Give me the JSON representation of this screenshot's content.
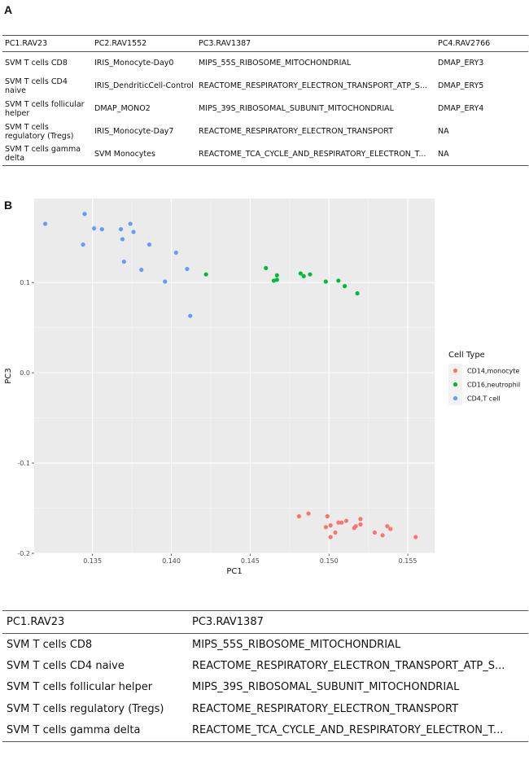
{
  "panel_a": {
    "label": "A",
    "columns": [
      "PC1.RAV23",
      "PC2.RAV1552",
      "PC3.RAV1387",
      "PC4.RAV2766"
    ],
    "rows": [
      [
        "SVM T cells CD8",
        "IRIS_Monocyte-Day0",
        "MIPS_55S_RIBOSOME_MITOCHONDRIAL",
        "DMAP_ERY3"
      ],
      [
        "SVM T cells CD4 naive",
        "IRIS_DendriticCell-Control",
        "REACTOME_RESPIRATORY_ELECTRON_TRANSPORT_ATP_S...",
        "DMAP_ERY5"
      ],
      [
        "SVM T cells follicular helper",
        "DMAP_MONO2",
        "MIPS_39S_RIBOSOMAL_SUBUNIT_MITOCHONDRIAL",
        "DMAP_ERY4"
      ],
      [
        "SVM T cells regulatory (Tregs)",
        "IRIS_Monocyte-Day7",
        "REACTOME_RESPIRATORY_ELECTRON_TRANSPORT",
        "NA"
      ],
      [
        "SVM T cells gamma delta",
        "SVM Monocytes",
        "REACTOME_TCA_CYCLE_AND_RESPIRATORY_ELECTRON_T...",
        "NA"
      ]
    ]
  },
  "panel_b": {
    "label": "B"
  },
  "panel_c": {
    "columns": [
      "PC1.RAV23",
      "PC3.RAV1387"
    ],
    "rows": [
      [
        "SVM T cells CD8",
        "MIPS_55S_RIBOSOME_MITOCHONDRIAL"
      ],
      [
        "SVM T cells CD4 naive",
        "REACTOME_RESPIRATORY_ELECTRON_TRANSPORT_ATP_S..."
      ],
      [
        "SVM T cells follicular helper",
        "MIPS_39S_RIBOSOMAL_SUBUNIT_MITOCHONDRIAL"
      ],
      [
        "SVM T cells regulatory (Tregs)",
        "REACTOME_RESPIRATORY_ELECTRON_TRANSPORT"
      ],
      [
        "SVM T cells gamma delta",
        "REACTOME_TCA_CYCLE_AND_RESPIRATORY_ELECTRON_T..."
      ]
    ]
  },
  "chart_data": {
    "type": "scatter",
    "xlabel": "PC1",
    "ylabel": "PC3",
    "xlim": [
      0.1313,
      0.1567
    ],
    "ylim": [
      -0.2,
      0.193
    ],
    "xticks": [
      0.135,
      0.14,
      0.145,
      0.15,
      0.155
    ],
    "xtick_labels": [
      "0.135",
      "0.140",
      "0.145",
      "0.150",
      "0.155"
    ],
    "yticks": [
      -0.2,
      -0.1,
      0.0,
      0.1
    ],
    "ytick_labels": [
      "-0.2",
      "-0.1",
      "0.0",
      "0.1"
    ],
    "grid": true,
    "background": "#ebebeb",
    "legend": {
      "title": "Cell Type",
      "position": "right"
    },
    "series": [
      {
        "name": "CD14,monocyte",
        "color": "#f8766d",
        "points": [
          [
            0.1481,
            -0.159
          ],
          [
            0.1487,
            -0.156
          ],
          [
            0.1499,
            -0.159
          ],
          [
            0.1498,
            -0.171
          ],
          [
            0.1501,
            -0.169
          ],
          [
            0.1504,
            -0.177
          ],
          [
            0.1501,
            -0.182
          ],
          [
            0.1506,
            -0.166
          ],
          [
            0.1508,
            -0.166
          ],
          [
            0.1511,
            -0.164
          ],
          [
            0.1516,
            -0.172
          ],
          [
            0.1517,
            -0.17
          ],
          [
            0.152,
            -0.162
          ],
          [
            0.152,
            -0.168
          ],
          [
            0.1529,
            -0.177
          ],
          [
            0.1534,
            -0.18
          ],
          [
            0.1537,
            -0.17
          ],
          [
            0.1539,
            -0.173
          ],
          [
            0.1555,
            -0.182
          ]
        ]
      },
      {
        "name": "CD16,neutrophil",
        "color": "#00ba38",
        "points": [
          [
            0.1422,
            0.109
          ],
          [
            0.146,
            0.116
          ],
          [
            0.1465,
            0.102
          ],
          [
            0.1467,
            0.108
          ],
          [
            0.1467,
            0.103
          ],
          [
            0.1482,
            0.11
          ],
          [
            0.1484,
            0.107
          ],
          [
            0.1488,
            0.109
          ],
          [
            0.1498,
            0.101
          ],
          [
            0.1506,
            0.102
          ],
          [
            0.151,
            0.096
          ],
          [
            0.1518,
            0.088
          ]
        ]
      },
      {
        "name": "CD4,T cell",
        "color": "#619cff",
        "points": [
          [
            0.132,
            0.165
          ],
          [
            0.1344,
            0.142
          ],
          [
            0.1345,
            0.176
          ],
          [
            0.1351,
            0.16
          ],
          [
            0.1356,
            0.159
          ],
          [
            0.1368,
            0.159
          ],
          [
            0.1369,
            0.148
          ],
          [
            0.137,
            0.123
          ],
          [
            0.1374,
            0.165
          ],
          [
            0.1376,
            0.156
          ],
          [
            0.1381,
            0.114
          ],
          [
            0.1386,
            0.142
          ],
          [
            0.1396,
            0.101
          ],
          [
            0.1403,
            0.133
          ],
          [
            0.141,
            0.115
          ],
          [
            0.1412,
            0.063
          ]
        ]
      }
    ]
  }
}
